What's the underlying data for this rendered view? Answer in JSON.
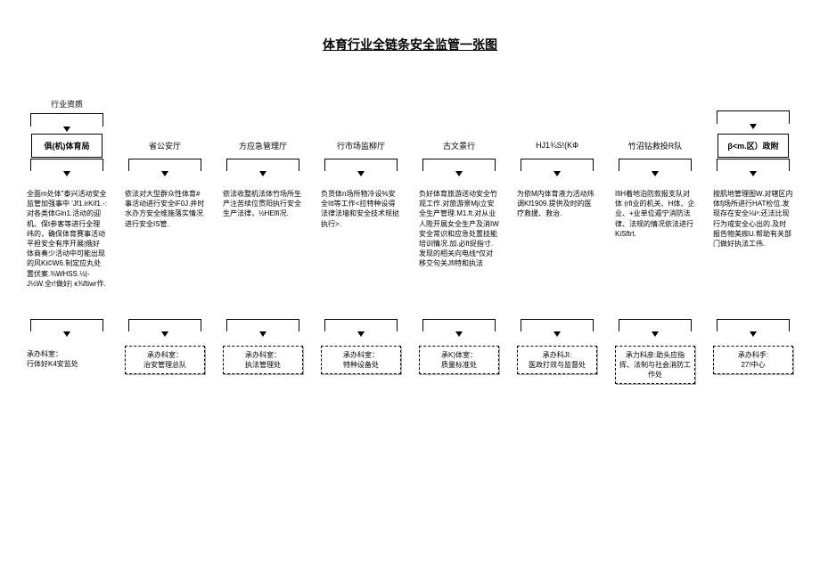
{
  "title": "体育行业全链条安全监管一张图",
  "top_label": "行业资质",
  "columns": [
    {
      "header": "俱(机)体育局",
      "header_style": "box",
      "desc": "全面m处体\"泰兴活动安全监管加强事中\n'Jf1.irKif1.-:对各类体Gln1.活动的迎机、保t参客等进行全理纬的，确保体育赛事活动平担安全有序开展|俄好体商奏少活动中可能出现的风Ki©W6.制定应丸处置伏案.⅜WHSS.½|-J½W.全r!做好| κ⅜ftiwr作.",
      "footer": "承办科室：\n行体好K4安监处",
      "footer_style": "plain"
    },
    {
      "header": "省公安厅",
      "header_style": "plain",
      "desc": "依法对大型群众性体育#事活动进行安全iF0J.井时水办方安全维施落实情况进行安全IS管.",
      "footer": "承办科室：\n治安管理总队",
      "footer_style": "dashed"
    },
    {
      "header": "方应急管理厅",
      "header_style": "plain",
      "desc": "依法收整机法体竹场所生产注苦续位贯阳执行安全生产法律，½HElfi况.",
      "footer": "承办科室：\n执法管理处",
      "footer_style": "dashed"
    },
    {
      "header": "行市场监柳厅",
      "header_style": "plain",
      "desc": "负货体n场所物冷设%安全Itt等工作<拉特种设得法律法墙和安全技术规挞执行>.",
      "footer": "承办科室：\n特种设备处",
      "footer_style": "dashed"
    },
    {
      "header": "古文景行",
      "header_style": "plain",
      "desc": "负好体育旅游送动安全竹观工作.对旅游景Mji立安全生产管理.M1.ft.对从业人陛开展女全生产及消IW安全常识和应急处置技能培训情况.加.必ft捉指寸.发现的相关向电线*仅对移交句关Jfi特和执法",
      "footer": "承K)体室：\n质量标准处",
      "footer_style": "dashed"
    },
    {
      "header": "HJ1¾S!(KФ",
      "header_style": "plain",
      "desc": "为依M内体育液力活动炜调Kf1909.提供及时的医疗救援、救治.",
      "footer": "承办科JI:\n医政打效与监督处",
      "footer_style": "dashed"
    },
    {
      "header": "竹沼钻救投R队",
      "header_style": "plain",
      "desc": "IfiH着地泊防款报支队对体  (rfi业的机关、H体、企业、+业单位遁宁消防法律、法规的情况依法进行KiSftrt.",
      "footer": "承力科彦:助头应指挥、法制与社会消防工作处",
      "footer_style": "dashed"
    },
    {
      "header": "β<m.区）政附",
      "header_style": "box",
      "desc": "按肌地管理图W.对辖区内体fj场所进行HAT检位.发现存在安全⅛iⁿ:还法比现行为戒安全心出的.及时报告物美痂U.帮助有关部门做好执法工伟.",
      "footer": "承办科手:\n27!中心",
      "footer_style": "dashed"
    }
  ]
}
